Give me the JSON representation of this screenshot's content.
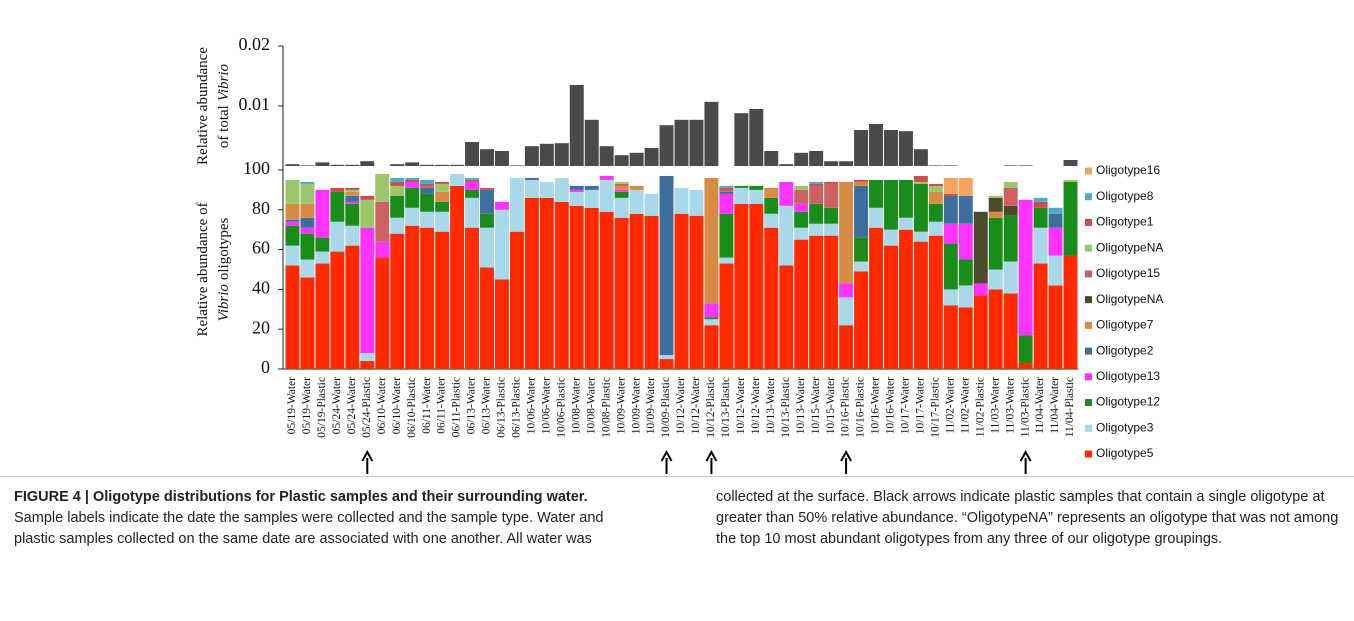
{
  "chart_data": [
    {
      "type": "bar",
      "y_label": [
        "Relative abundance",
        "of total",
        "Vibrio"
      ],
      "ylim": [
        0,
        0.02
      ],
      "yticks": [
        0.01,
        0.02
      ],
      "color": "#4a4a4a",
      "values": [
        0.0003,
        0.0001,
        0.0006,
        0.0002,
        0.0002,
        0.0008,
        0,
        0.0003,
        0.0006,
        0.0002,
        0.0002,
        0.0002,
        0.004,
        0.0028,
        0.0025,
        0.0001,
        0.0033,
        0.0037,
        0.0038,
        0.0135,
        0.0077,
        0.0033,
        0.0018,
        0.0022,
        0.003,
        0.0068,
        0.0077,
        0.0077,
        0.0107,
        0,
        0.0088,
        0.0095,
        0.0025,
        0.0003,
        0.0022,
        0.0025,
        0.0008,
        0.0008,
        0.006,
        0.007,
        0.006,
        0.0058,
        0.0028,
        0.0001,
        0.0001,
        0,
        0,
        0,
        0.0001,
        0.0001,
        0,
        0,
        0.001
      ]
    },
    {
      "type": "stacked_bar",
      "y_label": [
        "Relative abundance of",
        "Vibrio",
        "oligotypes"
      ],
      "ylim": [
        0,
        100
      ],
      "yticks": [
        0,
        20,
        40,
        60,
        80,
        100
      ],
      "legend": "right",
      "categories": [
        "05/19-Water",
        "05/19-Water",
        "05/19-Plastic",
        "05/24-Water",
        "05/24-Water",
        "05/24-Plastic",
        "06/10-Water",
        "06/10-Water",
        "06/10-Plastic",
        "06/11-Water",
        "06/11-Water",
        "06/11-Plastic",
        "06/13-Water",
        "06/13-Water",
        "06/13-Plastic",
        "06/13-Plastic",
        "10/06-Water",
        "10/06-Water",
        "10/06-Plastic",
        "10/08-Water",
        "10/08-Water",
        "10/08-Plastic",
        "10/09-Water",
        "10/09-Water",
        "10/09-Water",
        "10/09-Plastic",
        "10/12-Water",
        "10/12-Water",
        "10/12-Plastic",
        "10/13-Plastic",
        "10/12-Water",
        "10/12-Water",
        "10/13-Water",
        "10/13-Plastic",
        "10/13-Water",
        "10/15-Water",
        "10/15-Water",
        "10/16-Plastic",
        "10/16-Plastic",
        "10/16-Water",
        "10/16-Water",
        "10/17-Water",
        "10/17-Water",
        "10/17-Plastic",
        "11/02-Water",
        "11/02-Water",
        "11/02-Plastic",
        "11/03-Water",
        "11/03-Water",
        "11/03-Plastic",
        "11/04-Water",
        "11/04-Water",
        "11/04-Plastic"
      ],
      "series": [
        {
          "name": "Oligotype5",
          "color": "#ff2a00",
          "values": [
            52,
            46,
            53,
            59,
            62,
            4,
            56,
            68,
            72,
            71,
            69,
            92,
            71,
            51,
            45,
            69,
            86,
            86,
            84,
            82,
            81,
            79,
            76,
            78,
            77,
            5,
            78,
            77,
            22,
            53,
            83,
            83,
            71,
            52,
            65,
            67,
            67,
            22,
            49,
            71,
            62,
            70,
            64,
            67,
            32,
            31,
            37,
            40,
            38,
            3,
            53,
            42,
            57
          ]
        },
        {
          "name": "Oligotype3",
          "color": "#a9d8ea",
          "values": [
            10,
            9,
            6,
            15,
            10,
            4,
            0,
            8,
            9,
            8,
            10,
            6,
            15,
            20,
            35,
            27,
            9,
            8,
            12,
            7,
            9,
            16,
            10,
            12,
            11,
            2,
            13,
            13,
            3,
            3,
            8,
            7,
            7,
            30,
            6,
            6,
            6,
            14,
            5,
            10,
            8,
            6,
            5,
            7,
            8,
            11,
            0,
            10,
            16,
            0,
            18,
            15,
            0
          ]
        },
        {
          "name": "Oligotype12",
          "color": "#1a8c1a",
          "values": [
            10,
            13,
            7,
            15,
            11,
            0,
            0,
            11,
            10,
            9,
            5,
            0,
            4,
            7,
            0,
            0,
            0,
            0,
            0,
            0,
            0,
            0,
            3,
            0,
            0,
            0,
            0,
            0,
            1,
            22,
            1,
            2,
            8,
            0,
            8,
            10,
            8,
            0,
            12,
            14,
            25,
            19,
            24,
            9,
            23,
            13,
            0,
            26,
            23,
            14,
            10,
            0,
            37
          ]
        },
        {
          "name": "Oligotype13",
          "color": "#ff33ff",
          "values": [
            2,
            3,
            24,
            0,
            1,
            63,
            8,
            0,
            3,
            0,
            0,
            0,
            4,
            0,
            4,
            0,
            0,
            0,
            0,
            1,
            0,
            2,
            1,
            0,
            0,
            0,
            0,
            0,
            7,
            10,
            0,
            0,
            0,
            12,
            4,
            0,
            0,
            7,
            0,
            0,
            0,
            0,
            0,
            0,
            10,
            18,
            6,
            0,
            0,
            68,
            0,
            14,
            0
          ]
        },
        {
          "name": "Oligotype2",
          "color": "#3d6e9e",
          "values": [
            1,
            5,
            0,
            0,
            3,
            0,
            0,
            0,
            0,
            3,
            0,
            0,
            0,
            12,
            0,
            0,
            1,
            0,
            0,
            2,
            2,
            0,
            0,
            0,
            0,
            90,
            0,
            0,
            0,
            1,
            0,
            0,
            0,
            0,
            0,
            0,
            0,
            0,
            26,
            0,
            0,
            0,
            0,
            0,
            14,
            14,
            0,
            0,
            0,
            0,
            0,
            7,
            0
          ]
        },
        {
          "name": "Oligotype7",
          "color": "#d78b45",
          "values": [
            8,
            7,
            0,
            0,
            2,
            0,
            0,
            0,
            0,
            0,
            5,
            0,
            0,
            0,
            0,
            0,
            0,
            0,
            0,
            0,
            0,
            0,
            2,
            2,
            0,
            0,
            0,
            0,
            63,
            0,
            0,
            0,
            5,
            0,
            0,
            0,
            0,
            51,
            2,
            0,
            0,
            0,
            0,
            6,
            0,
            0,
            0,
            3,
            0,
            0,
            0,
            0,
            0
          ]
        },
        {
          "name": "OligotypeNA",
          "color": "#4b4a2a",
          "values": [
            0,
            0,
            0,
            0,
            0,
            0,
            0,
            0,
            0,
            0,
            0,
            0,
            0,
            0,
            0,
            0,
            0,
            0,
            0,
            0,
            0,
            0,
            0,
            0,
            0,
            0,
            0,
            0,
            0,
            0,
            0,
            0,
            0,
            0,
            0,
            0,
            0,
            0,
            0,
            0,
            0,
            0,
            0,
            0,
            0,
            0,
            36,
            7,
            5,
            0,
            0,
            0,
            0
          ]
        },
        {
          "name": "Oligotype15",
          "color": "#cd6060",
          "values": [
            0,
            0,
            0,
            0,
            0,
            0,
            20,
            0,
            0,
            1,
            0,
            0,
            0,
            0,
            0,
            0,
            0,
            0,
            0,
            0,
            0,
            0,
            1,
            0,
            0,
            0,
            0,
            0,
            0,
            1,
            0,
            0,
            0,
            0,
            7,
            9,
            12,
            0,
            0,
            0,
            0,
            0,
            0,
            0,
            0,
            0,
            0,
            0,
            9,
            0,
            0,
            0,
            0
          ]
        },
        {
          "name": "OligotypeNA",
          "color": "#9cc66c",
          "values": [
            12,
            10,
            0,
            0,
            1,
            14,
            14,
            5,
            0,
            0,
            4,
            0,
            0,
            0,
            0,
            0,
            0,
            0,
            0,
            0,
            0,
            0,
            1,
            0,
            0,
            0,
            0,
            0,
            0,
            0,
            0,
            0,
            0,
            0,
            2,
            0,
            0,
            0,
            0,
            0,
            0,
            0,
            1,
            3,
            0,
            0,
            0,
            1,
            3,
            0,
            0,
            0,
            1
          ]
        },
        {
          "name": "Oligotype1",
          "color": "#c8504a",
          "values": [
            0,
            0,
            0,
            2,
            1,
            2,
            0,
            2,
            1,
            1,
            1,
            0,
            1,
            1,
            0,
            0,
            0,
            0,
            0,
            0,
            0,
            0,
            0,
            0,
            0,
            0,
            0,
            0,
            0,
            1,
            0,
            0,
            0,
            0,
            0,
            1,
            1,
            0,
            1,
            0,
            0,
            0,
            3,
            1,
            1,
            0,
            0,
            0,
            0,
            0,
            3,
            0,
            0
          ]
        },
        {
          "name": "Oligotype8",
          "color": "#4bacc6",
          "values": [
            0,
            1,
            0,
            0,
            0,
            0,
            0,
            2,
            1,
            2,
            0,
            0,
            1,
            0,
            0,
            0,
            0,
            0,
            0,
            0,
            0,
            0,
            0,
            0,
            0,
            0,
            0,
            0,
            0,
            1,
            0,
            0,
            0,
            0,
            0,
            1,
            0,
            0,
            0,
            0,
            0,
            0,
            0,
            0,
            0,
            0,
            0,
            0,
            0,
            0,
            2,
            3,
            0
          ]
        },
        {
          "name": "Oligotype16",
          "color": "#f5a460",
          "values": [
            0,
            0,
            0,
            0,
            0,
            0,
            0,
            0,
            0,
            0,
            0,
            0,
            0,
            0,
            0,
            0,
            0,
            0,
            0,
            0,
            0,
            0,
            0,
            0,
            0,
            0,
            0,
            0,
            0,
            0,
            0,
            0,
            0,
            0,
            0,
            0,
            0,
            0,
            0,
            0,
            0,
            0,
            0,
            0,
            8,
            9,
            0,
            0,
            0,
            0,
            0,
            0,
            0
          ]
        }
      ]
    }
  ],
  "caption": {
    "title": "FIGURE 4 | Oligotype distributions for Plastic samples and their surrounding water.",
    "text": "Sample labels indicate the date the samples were collected and the sample type. Water and plastic samples collected on the same date are associated with one another. All water was collected at the surface. Black arrows indicate plastic samples that contain a single oligotype at greater than 50% relative abundance. “OligotypeNA” represents an oligotype that was not among the top 10 most abundant oligotypes from any three of our oligotype groupings."
  }
}
